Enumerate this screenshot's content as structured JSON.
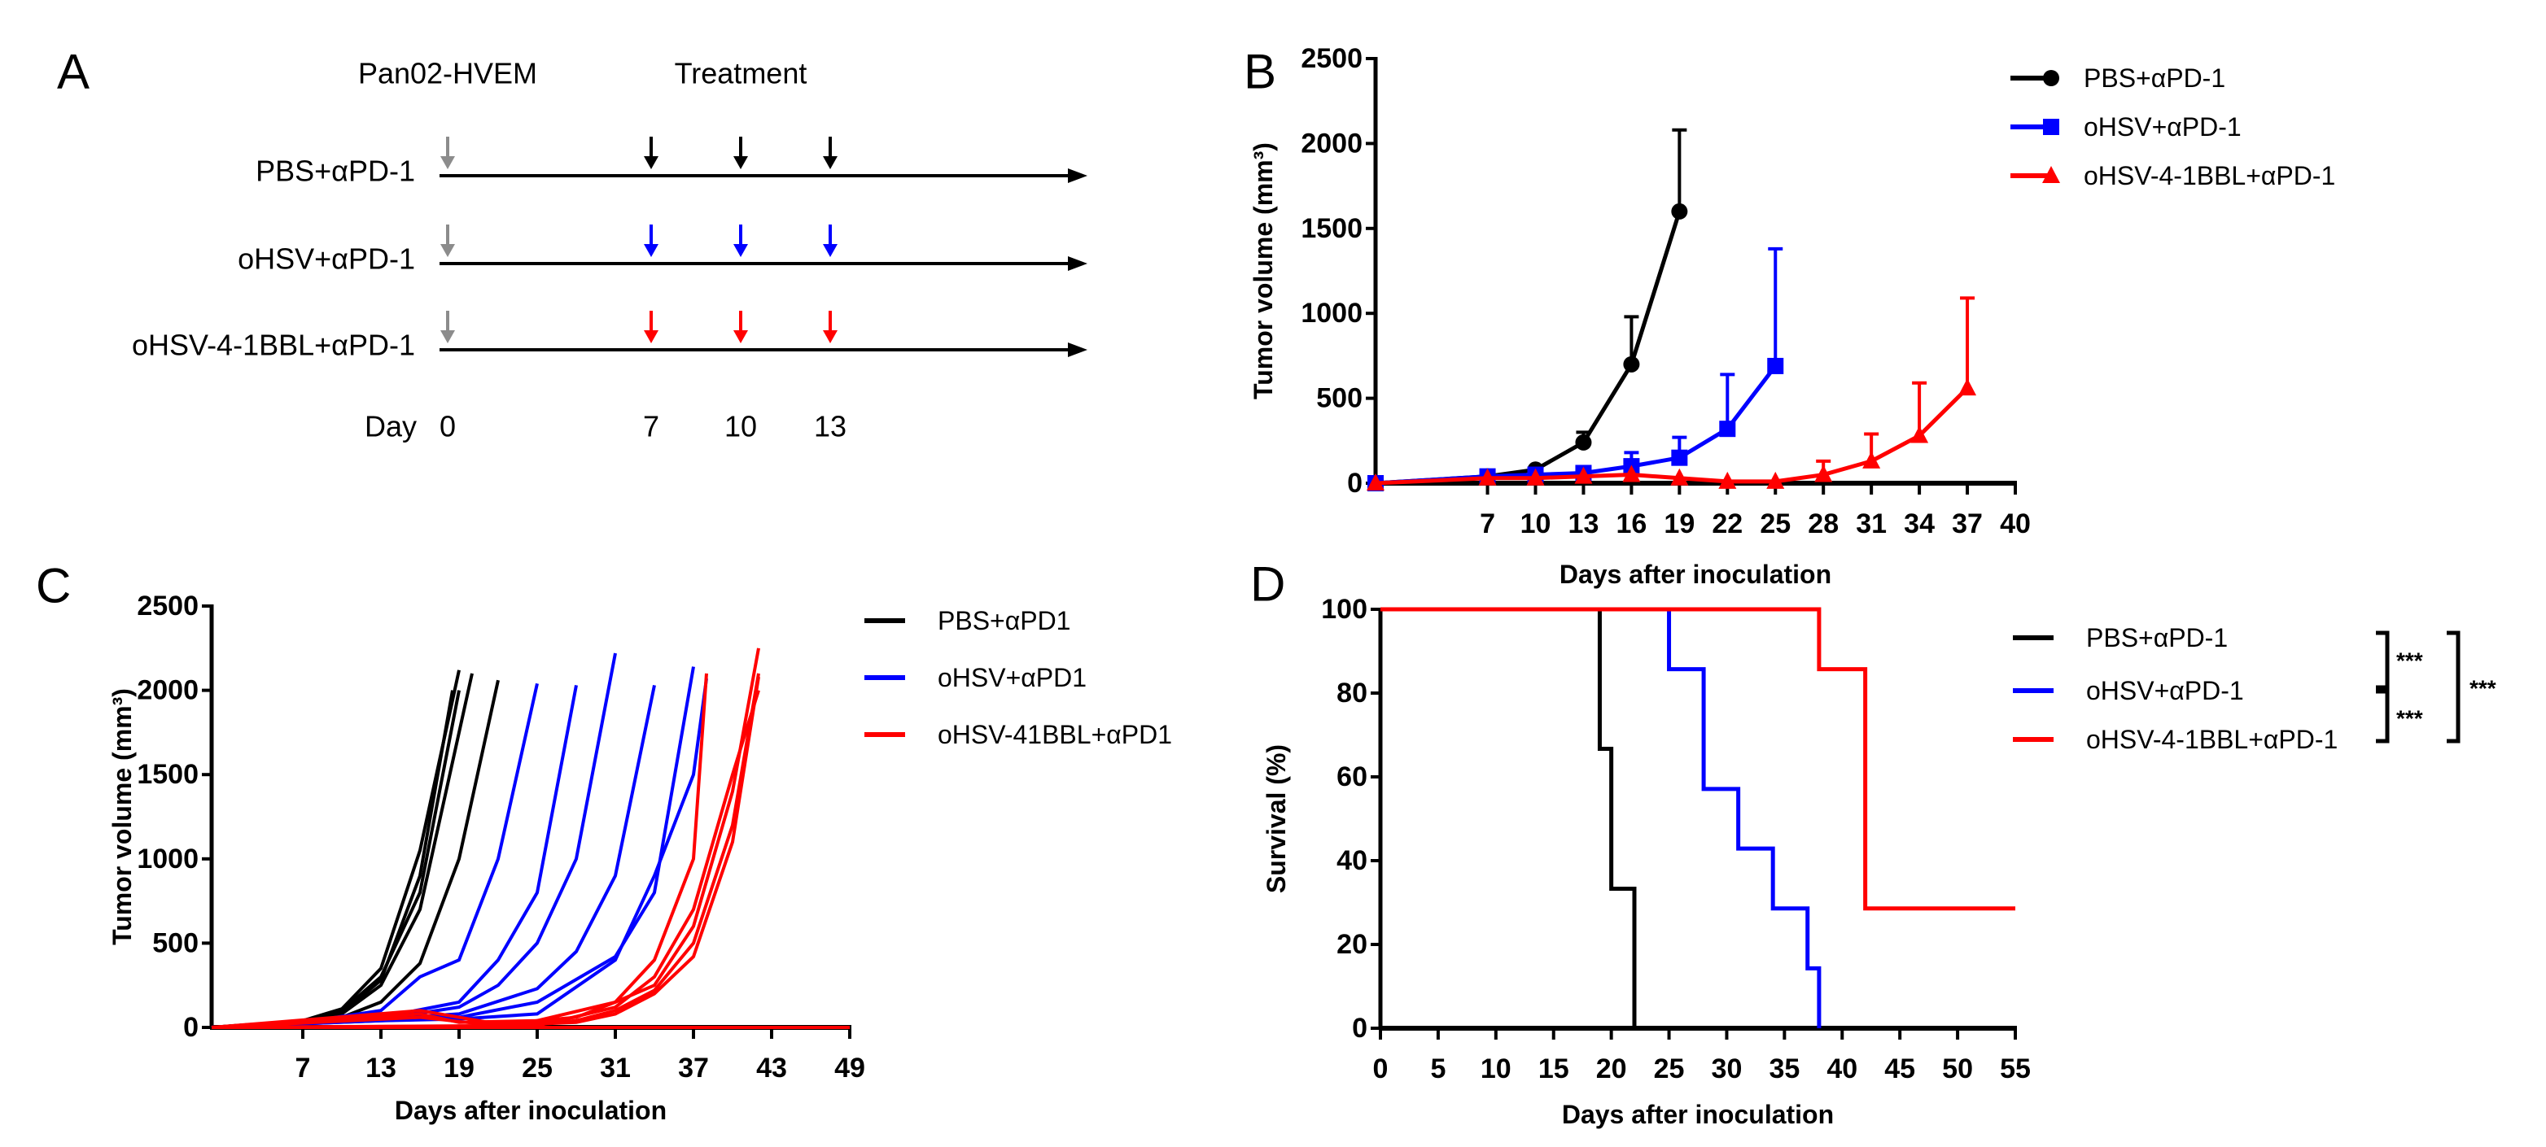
{
  "panel_A": {
    "label": "A",
    "site_label": "Pan02-HVEM",
    "treatment_label": "Treatment",
    "groups": [
      {
        "name": "PBS+αPD-1",
        "color": "#000000"
      },
      {
        "name": "oHSV+αPD-1",
        "color": "#0000ff"
      },
      {
        "name": "oHSV-4-1BBL+αPD-1",
        "color": "#ff0000"
      }
    ],
    "inoculation_color": "#8c8c8c",
    "day_label": "Day",
    "days": [
      "0",
      "7",
      "10",
      "13"
    ]
  },
  "chart_data": [
    {
      "panel": "B",
      "type": "line",
      "xlabel": "Days after inoculation",
      "ylabel": "Tumor volume (mm³)",
      "xlim": [
        0,
        40
      ],
      "ylim": [
        0,
        2500
      ],
      "xticks": [
        "7",
        "10",
        "13",
        "16",
        "19",
        "22",
        "25",
        "28",
        "31",
        "34",
        "37",
        "40"
      ],
      "yticks": [
        "0",
        "500",
        "1000",
        "1500",
        "2000",
        "2500"
      ],
      "legend_position": "top-right",
      "series": [
        {
          "name": "PBS+αPD-1",
          "color": "#000000",
          "marker": "circle",
          "x": [
            0,
            7,
            10,
            13,
            16,
            19
          ],
          "y": [
            0,
            40,
            80,
            240,
            700,
            1600
          ],
          "err_upper": [
            0,
            45,
            90,
            300,
            980,
            2080
          ]
        },
        {
          "name": "oHSV+αPD-1",
          "color": "#0000ff",
          "marker": "square",
          "x": [
            0,
            7,
            10,
            13,
            16,
            19,
            22,
            25
          ],
          "y": [
            0,
            40,
            50,
            60,
            100,
            150,
            320,
            690
          ],
          "err_upper": [
            0,
            45,
            60,
            75,
            180,
            270,
            640,
            1380
          ]
        },
        {
          "name": "oHSV-4-1BBL+αPD-1",
          "color": "#ff0000",
          "marker": "triangle",
          "x": [
            0,
            7,
            10,
            13,
            16,
            19,
            22,
            25,
            28,
            31,
            34,
            37
          ],
          "y": [
            0,
            30,
            30,
            40,
            50,
            30,
            10,
            10,
            50,
            130,
            280,
            560
          ],
          "err_upper": [
            0,
            35,
            35,
            45,
            60,
            40,
            15,
            15,
            130,
            290,
            590,
            1090
          ]
        }
      ]
    },
    {
      "panel": "C",
      "type": "line",
      "xlabel": "Days after inoculation",
      "ylabel": "Tumor volume (mm³)",
      "xlim": [
        0,
        49
      ],
      "ylim": [
        0,
        2500
      ],
      "xticks": [
        "7",
        "13",
        "19",
        "25",
        "31",
        "37",
        "43",
        "49"
      ],
      "yticks": [
        "0",
        "500",
        "1000",
        "1500",
        "2000",
        "2500"
      ],
      "legend_position": "top-right",
      "series": [
        {
          "name": "PBS+αPD1",
          "color": "#000000",
          "individuals": [
            [
              [
                0,
                0
              ],
              [
                7,
                40
              ],
              [
                10,
                110
              ],
              [
                13,
                350
              ],
              [
                16,
                1050
              ],
              [
                19,
                2120
              ]
            ],
            [
              [
                0,
                0
              ],
              [
                7,
                40
              ],
              [
                10,
                90
              ],
              [
                13,
                280
              ],
              [
                16,
                900
              ],
              [
                18.5,
                2000
              ]
            ],
            [
              [
                0,
                0
              ],
              [
                7,
                35
              ],
              [
                10,
                80
              ],
              [
                13,
                250
              ],
              [
                16,
                700
              ],
              [
                20,
                2100
              ]
            ],
            [
              [
                0,
                0
              ],
              [
                7,
                30
              ],
              [
                10,
                60
              ],
              [
                13,
                150
              ],
              [
                16,
                380
              ],
              [
                19,
                1000
              ],
              [
                22,
                2060
              ]
            ],
            [
              [
                0,
                0
              ],
              [
                7,
                40
              ],
              [
                10,
                100
              ],
              [
                13,
                300
              ],
              [
                16,
                800
              ],
              [
                19,
                2000
              ]
            ]
          ]
        },
        {
          "name": "oHSV+αPD1",
          "color": "#0000ff",
          "individuals": [
            [
              [
                0,
                0
              ],
              [
                7,
                30
              ],
              [
                13,
                100
              ],
              [
                16,
                300
              ],
              [
                19,
                400
              ],
              [
                22,
                1000
              ],
              [
                25,
                2040
              ]
            ],
            [
              [
                0,
                0
              ],
              [
                7,
                30
              ],
              [
                13,
                60
              ],
              [
                19,
                150
              ],
              [
                22,
                400
              ],
              [
                25,
                800
              ],
              [
                28,
                2030
              ]
            ],
            [
              [
                0,
                0
              ],
              [
                13,
                50
              ],
              [
                19,
                120
              ],
              [
                22,
                250
              ],
              [
                25,
                500
              ],
              [
                28,
                1000
              ],
              [
                31,
                2220
              ]
            ],
            [
              [
                0,
                0
              ],
              [
                13,
                50
              ],
              [
                19,
                80
              ],
              [
                25,
                230
              ],
              [
                28,
                450
              ],
              [
                31,
                900
              ],
              [
                34,
                2030
              ]
            ],
            [
              [
                0,
                0
              ],
              [
                13,
                40
              ],
              [
                19,
                60
              ],
              [
                25,
                150
              ],
              [
                31,
                420
              ],
              [
                34,
                800
              ],
              [
                37,
                2140
              ]
            ],
            [
              [
                0,
                0
              ],
              [
                13,
                40
              ],
              [
                19,
                50
              ],
              [
                25,
                80
              ],
              [
                31,
                400
              ],
              [
                34,
                900
              ],
              [
                37,
                1500
              ],
              [
                38,
                2070
              ]
            ]
          ]
        },
        {
          "name": "oHSV-41BBL+αPD1",
          "color": "#ff0000",
          "individuals": [
            [
              [
                0,
                0
              ],
              [
                16,
                80
              ],
              [
                19,
                30
              ],
              [
                25,
                40
              ],
              [
                31,
                150
              ],
              [
                34,
                400
              ],
              [
                37,
                1000
              ],
              [
                38,
                2100
              ]
            ],
            [
              [
                0,
                0
              ],
              [
                16,
                100
              ],
              [
                22,
                20
              ],
              [
                28,
                60
              ],
              [
                31,
                150
              ],
              [
                34,
                250
              ],
              [
                37,
                600
              ],
              [
                40,
                1400
              ],
              [
                42,
                2250
              ]
            ],
            [
              [
                0,
                0
              ],
              [
                16,
                60
              ],
              [
                22,
                10
              ],
              [
                28,
                40
              ],
              [
                31,
                100
              ],
              [
                34,
                220
              ],
              [
                37,
                500
              ],
              [
                40,
                1200
              ],
              [
                42,
                2100
              ]
            ],
            [
              [
                0,
                0
              ],
              [
                22,
                10
              ],
              [
                28,
                30
              ],
              [
                31,
                80
              ],
              [
                34,
                200
              ],
              [
                37,
                420
              ],
              [
                40,
                1100
              ],
              [
                42,
                2080
              ]
            ],
            [
              [
                0,
                0
              ],
              [
                25,
                10
              ],
              [
                31,
                120
              ],
              [
                34,
                300
              ],
              [
                37,
                700
              ],
              [
                40,
                1500
              ],
              [
                42,
                2000
              ]
            ],
            [
              [
                0,
                0
              ],
              [
                22,
                0
              ],
              [
                49,
                0
              ]
            ]
          ]
        }
      ]
    },
    {
      "panel": "D",
      "type": "line",
      "subtype": "kaplan-meier",
      "xlabel": "Days after inoculation",
      "ylabel": "Survival (%)",
      "xlim": [
        0,
        55
      ],
      "ylim": [
        0,
        100
      ],
      "xticks": [
        "0",
        "5",
        "10",
        "15",
        "20",
        "25",
        "30",
        "35",
        "40",
        "45",
        "50",
        "55"
      ],
      "yticks": [
        "0",
        "20",
        "40",
        "60",
        "80",
        "100"
      ],
      "legend_position": "top-right",
      "series": [
        {
          "name": "PBS+αPD-1",
          "color": "#000000",
          "steps": [
            [
              0,
              100
            ],
            [
              19,
              66.7
            ],
            [
              20,
              33.3
            ],
            [
              22,
              0
            ],
            [
              55,
              0
            ]
          ]
        },
        {
          "name": "oHSV+αPD-1",
          "color": "#0000ff",
          "steps": [
            [
              0,
              100
            ],
            [
              25,
              85.7
            ],
            [
              28,
              57.1
            ],
            [
              31,
              42.9
            ],
            [
              34,
              28.6
            ],
            [
              37,
              14.3
            ],
            [
              38,
              0
            ]
          ]
        },
        {
          "name": "oHSV-4-1BBL+αPD-1",
          "color": "#ff0000",
          "steps": [
            [
              0,
              100
            ],
            [
              38,
              85.7
            ],
            [
              42,
              28.6
            ],
            [
              55,
              28.6
            ]
          ]
        }
      ],
      "significance": [
        {
          "pair": "PBS vs oHSV",
          "label": "***"
        },
        {
          "pair": "oHSV vs oHSV-4-1BBL",
          "label": "***"
        },
        {
          "pair": "PBS vs oHSV-4-1BBL",
          "label": "***"
        }
      ]
    }
  ],
  "panel_labels": [
    "B",
    "C",
    "D"
  ]
}
